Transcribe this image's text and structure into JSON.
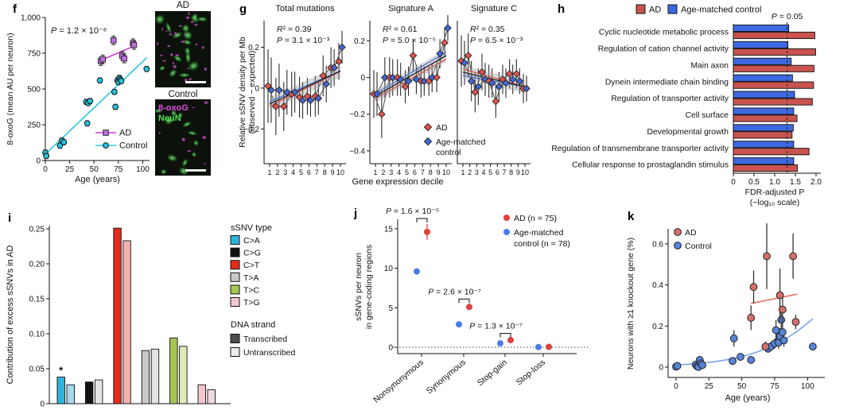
{
  "panels": {
    "f": "f",
    "g": "g",
    "h": "h",
    "i": "i",
    "j": "j",
    "k": "k"
  },
  "chart_data": [
    {
      "panel": "f",
      "type": "scatter",
      "xlabel": "Age (years)",
      "ylabel": "8-oxoG (mean AU per neuron)",
      "xticks": [
        0,
        25,
        50,
        75,
        100
      ],
      "yticks": [
        0,
        250,
        500,
        750,
        1000
      ],
      "ytick_labels": [
        "0",
        "250",
        "500",
        "750",
        "1,000"
      ],
      "xlim": [
        0,
        107
      ],
      "ylim": [
        0,
        1000
      ],
      "annotation": "P = 1.2 × 10⁻⁶",
      "legend": [
        "AD",
        "Control"
      ],
      "series": [
        {
          "name": "AD",
          "marker": "square",
          "color": "#c06ee0",
          "edge": "#2a2a2a",
          "err": 30,
          "points": [
            [
              57,
              695
            ],
            [
              59,
              707
            ],
            [
              70,
              840
            ],
            [
              79,
              733
            ],
            [
              81,
              713
            ],
            [
              90,
              820
            ],
            [
              91,
              808
            ]
          ],
          "trend": [
            [
              56,
              697
            ],
            [
              91,
              800
            ]
          ],
          "trend_color": "#cc3fd6"
        },
        {
          "name": "Control",
          "marker": "circle",
          "color": "#22c3dc",
          "edge": "#161616",
          "err": 18,
          "points": [
            [
              0,
              55
            ],
            [
              1,
              32
            ],
            [
              15,
              104
            ],
            [
              17,
              140
            ],
            [
              19,
              128
            ],
            [
              42,
              410
            ],
            [
              44,
              402
            ],
            [
              46,
              416
            ],
            [
              43,
              260
            ],
            [
              56,
              560
            ],
            [
              71,
              480
            ],
            [
              72,
              375
            ],
            [
              74,
              560
            ],
            [
              75,
              548
            ],
            [
              76,
              578
            ],
            [
              77,
              566
            ],
            [
              78,
              556
            ],
            [
              104,
              640
            ]
          ],
          "trend": [
            [
              0,
              45
            ],
            [
              104,
              718
            ]
          ],
          "trend_color": "#2cc7de"
        }
      ],
      "images": {
        "top_label": "AD",
        "bottom_label": "Control",
        "stain1": "8-oxoG",
        "stain1_color": "#e54ae5",
        "stain2": "NeuN",
        "stain2_color": "#55e055"
      }
    },
    {
      "panel": "g",
      "type": "scatter-multi",
      "ylabel_line1": "Relative sSNV density per Mb",
      "ylabel_line2": "(observed − expected)",
      "xlabel": "Gene expression decile",
      "x": [
        1,
        2,
        3,
        4,
        5,
        6,
        7,
        8,
        9,
        10
      ],
      "legend": [
        "AD",
        "Age-matched",
        "control"
      ],
      "colors": {
        "ad": "#e2534d",
        "control": "#4267d8"
      },
      "subplots": [
        {
          "title": "Total mutations",
          "r2": "R² = 0.39",
          "p": "P = 3.1 × 10⁻³",
          "yticks": [
            0.2,
            0,
            -0.2
          ],
          "ytick_labels": [
            "0.2",
            "0",
            "−0.2"
          ],
          "ylim": [
            -0.37,
            0.33
          ],
          "ad": [
            0.01,
            -0.09,
            -0.09,
            -0.03,
            -0.045,
            -0.04,
            -0.04,
            0.06,
            0.1,
            0.13
          ],
          "ad_err": [
            0.18,
            0.14,
            0.12,
            0.11,
            0.1,
            0.09,
            0.1,
            0.1,
            0.1,
            0.09
          ],
          "control": [
            -0.01,
            -0.01,
            -0.02,
            -0.02,
            -0.06,
            -0.06,
            -0.05,
            0.02,
            0.1,
            0.2
          ],
          "control_err": [
            0.16,
            0.13,
            0.11,
            0.1,
            0.09,
            0.08,
            0.08,
            0.09,
            0.09,
            0.08
          ]
        },
        {
          "title": "Signature A",
          "r2": "R² = 0.61",
          "p": "P = 5.0 × 10⁻⁵",
          "yticks": [
            0.2,
            0,
            -0.2,
            -0.4
          ],
          "ytick_labels": [
            "0.2",
            "0",
            "−0.2",
            "−0.4"
          ],
          "ylim": [
            -0.47,
            0.31
          ],
          "ad": [
            -0.09,
            -0.2,
            0.0,
            0.0,
            -0.05,
            0.12,
            -0.02,
            -0.02,
            0.0,
            0.19
          ],
          "ad_err": [
            0.13,
            0.13,
            0.11,
            0.1,
            0.09,
            0.09,
            0.09,
            0.08,
            0.08,
            0.08
          ],
          "control": [
            -0.09,
            0.0,
            0.0,
            -0.01,
            -0.02,
            -0.01,
            -0.02,
            0.0,
            0.13,
            0.27
          ],
          "control_err": [
            0.12,
            0.11,
            0.1,
            0.09,
            0.08,
            0.08,
            0.08,
            0.08,
            0.08,
            0.07
          ]
        },
        {
          "title": "Signature C",
          "r2": "R² = 0.35",
          "p": "P = 6.5 × 10⁻³",
          "yticks": [],
          "ytick_labels": [],
          "ylim": [
            -0.47,
            0.31
          ],
          "ad": [
            0.09,
            0.12,
            -0.08,
            0.03,
            -0.02,
            -0.13,
            -0.01,
            0.02,
            0.02,
            -0.06
          ],
          "ad_err": [
            0.14,
            0.12,
            0.11,
            0.1,
            0.09,
            0.09,
            0.08,
            0.08,
            0.08,
            0.08
          ],
          "control": [
            0.08,
            -0.02,
            -0.05,
            -0.01,
            -0.03,
            -0.05,
            -0.03,
            -0.01,
            -0.02,
            -0.06
          ],
          "control_err": [
            0.12,
            0.11,
            0.1,
            0.09,
            0.08,
            0.08,
            0.08,
            0.08,
            0.07,
            0.07
          ]
        }
      ]
    },
    {
      "panel": "h",
      "type": "bar-h",
      "legend": [
        "AD",
        "Age-matched control"
      ],
      "colors": {
        "ad": "#c8534f",
        "control": "#3e68e0"
      },
      "categories": [
        "Cyclic nucleotide metabolic process",
        "Regulation of cation channel activity",
        "Main axon",
        "Dynein intermediate chain binding",
        "Regulation of transporter activity",
        "Cell surface",
        "Developmental growth",
        "Regulation of transmembrane transporter activity",
        "Cellular response to prostaglandin stimulus"
      ],
      "ad": [
        1.97,
        1.99,
        1.95,
        1.94,
        1.91,
        1.54,
        1.42,
        1.83,
        1.55
      ],
      "control": [
        1.34,
        1.32,
        1.4,
        1.43,
        1.48,
        1.46,
        1.45,
        1.46,
        1.46
      ],
      "xticks": [
        0,
        0.5,
        1.0,
        1.5,
        2.0
      ],
      "xtick_labels": [
        "0",
        "0.5",
        "1.0",
        "1.5",
        "2.0"
      ],
      "xlim": [
        0,
        2.0
      ],
      "xlabel_line1": "FDR-adjusted P",
      "xlabel_line2": "(−log₁₀ scale)",
      "ref_line": {
        "label": "P = 0.05",
        "value": 1.3
      }
    },
    {
      "panel": "i",
      "type": "bar-pairs",
      "ylabel": "Contribution of excess sSNVs in AD",
      "yticks": [
        0,
        0.05,
        0.1,
        0.15,
        0.2,
        0.25
      ],
      "ytick_labels": [
        "0",
        "0.05",
        "0.10",
        "0.15",
        "0.20",
        "0.25"
      ],
      "ylim": [
        0,
        0.262
      ],
      "groups": [
        "C>A",
        "C>G",
        "C>T",
        "T>A",
        "T>C",
        "T>G"
      ],
      "transcribed": [
        0.038,
        0.031,
        0.251,
        0.076,
        0.094,
        0.027
      ],
      "untranscribed": [
        0.027,
        0.034,
        0.233,
        0.078,
        0.082,
        0.02
      ],
      "type_colors": [
        "#2eb4dc",
        "#121212",
        "#e52a1e",
        "#c9c9c9",
        "#a5c751",
        "#f3c6ce"
      ],
      "type_colors_light": [
        "#a9d9ec",
        "#e6e6e6",
        "#f1b2ae",
        "#e4e4e4",
        "#dfeab8",
        "#eedbe0"
      ],
      "star_annotation": "*",
      "legend_type_title": "sSNV type",
      "legend_strand_title": "DNA strand",
      "strand_labels": [
        "Transcribed",
        "Untranscribed"
      ],
      "strand_colors": [
        "#4d4d4d",
        "#ececec"
      ]
    },
    {
      "panel": "j",
      "type": "dot",
      "ylabel_line1": "sSNVs per neuron",
      "ylabel_line2": "in gene-coding regions",
      "yticks": [
        0,
        5,
        10,
        15
      ],
      "categories": [
        "Nonsynonymous",
        "Synonymous",
        "Stop-gain",
        "Stop-loss"
      ],
      "ad": [
        14.6,
        5.1,
        0.9,
        0.05
      ],
      "ad_err": [
        1.0,
        0.3,
        0.15,
        0.05
      ],
      "control": [
        9.6,
        2.9,
        0.5,
        0.02
      ],
      "control_err": [
        0.4,
        0.2,
        0.1,
        0.04
      ],
      "pvalues": [
        "P = 1.6 × 10⁻⁵",
        "P = 2.6 × 10⁻⁷",
        "P = 1.3 × 10⁻⁷"
      ],
      "colors": {
        "ad": "#e0413c",
        "control": "#4b7be5"
      },
      "legend": [
        "AD (n = 75)",
        "Age-matched",
        "control (n = 78)"
      ]
    },
    {
      "panel": "k",
      "type": "scatter",
      "xlabel": "Age (years)",
      "ylabel": "Neurons with ≥1 knockout gene (%)",
      "xticks": [
        0,
        25,
        50,
        75,
        100
      ],
      "yticks": [
        0,
        0.2,
        0.4,
        0.6
      ],
      "ytick_labels": [
        "0",
        "0.2",
        "0.4",
        "0.6"
      ],
      "colors": {
        "ad": "#d4706a",
        "control": "#5784dc"
      },
      "legend": [
        "AD",
        "Control"
      ],
      "ad_points": [
        [
          57,
          0.24,
          0.06
        ],
        [
          59,
          0.39,
          0.08
        ],
        [
          68,
          0.1,
          0.025
        ],
        [
          69,
          0.54,
          0.16
        ],
        [
          79,
          0.35,
          0.13
        ],
        [
          81,
          0.28,
          0.07
        ],
        [
          89,
          0.54,
          0.11
        ],
        [
          91,
          0.22,
          0.035
        ]
      ],
      "control_points": [
        [
          0,
          0.002,
          0
        ],
        [
          1,
          0.006,
          0
        ],
        [
          15,
          0.012,
          0.004
        ],
        [
          16,
          0.004,
          0
        ],
        [
          17,
          0.001,
          0
        ],
        [
          18,
          0.035,
          0.012
        ],
        [
          19,
          0.018,
          0.008
        ],
        [
          20,
          0.01,
          0.004
        ],
        [
          43,
          0.03,
          0.012
        ],
        [
          44,
          0.14,
          0.04
        ],
        [
          49,
          0.05,
          0.015
        ],
        [
          57,
          0.035,
          0.012
        ],
        [
          70,
          0.09,
          0.02
        ],
        [
          72,
          0.1,
          0.022
        ],
        [
          75,
          0.115,
          0.025
        ],
        [
          76,
          0.18,
          0.05
        ],
        [
          78,
          0.12,
          0.03
        ],
        [
          79,
          0.15,
          0.04
        ],
        [
          80,
          0.23,
          0.05
        ],
        [
          81,
          0.17,
          0.04
        ],
        [
          82,
          0.13,
          0.03
        ],
        [
          104,
          0.1,
          0.02
        ]
      ],
      "ad_trend": [
        [
          57,
          0.31
        ],
        [
          92,
          0.355
        ]
      ],
      "control_curve": [
        [
          0,
          0.01
        ],
        [
          15,
          0.017
        ],
        [
          30,
          0.027
        ],
        [
          45,
          0.044
        ],
        [
          60,
          0.07
        ],
        [
          75,
          0.11
        ],
        [
          90,
          0.165
        ],
        [
          104,
          0.235
        ]
      ]
    }
  ]
}
